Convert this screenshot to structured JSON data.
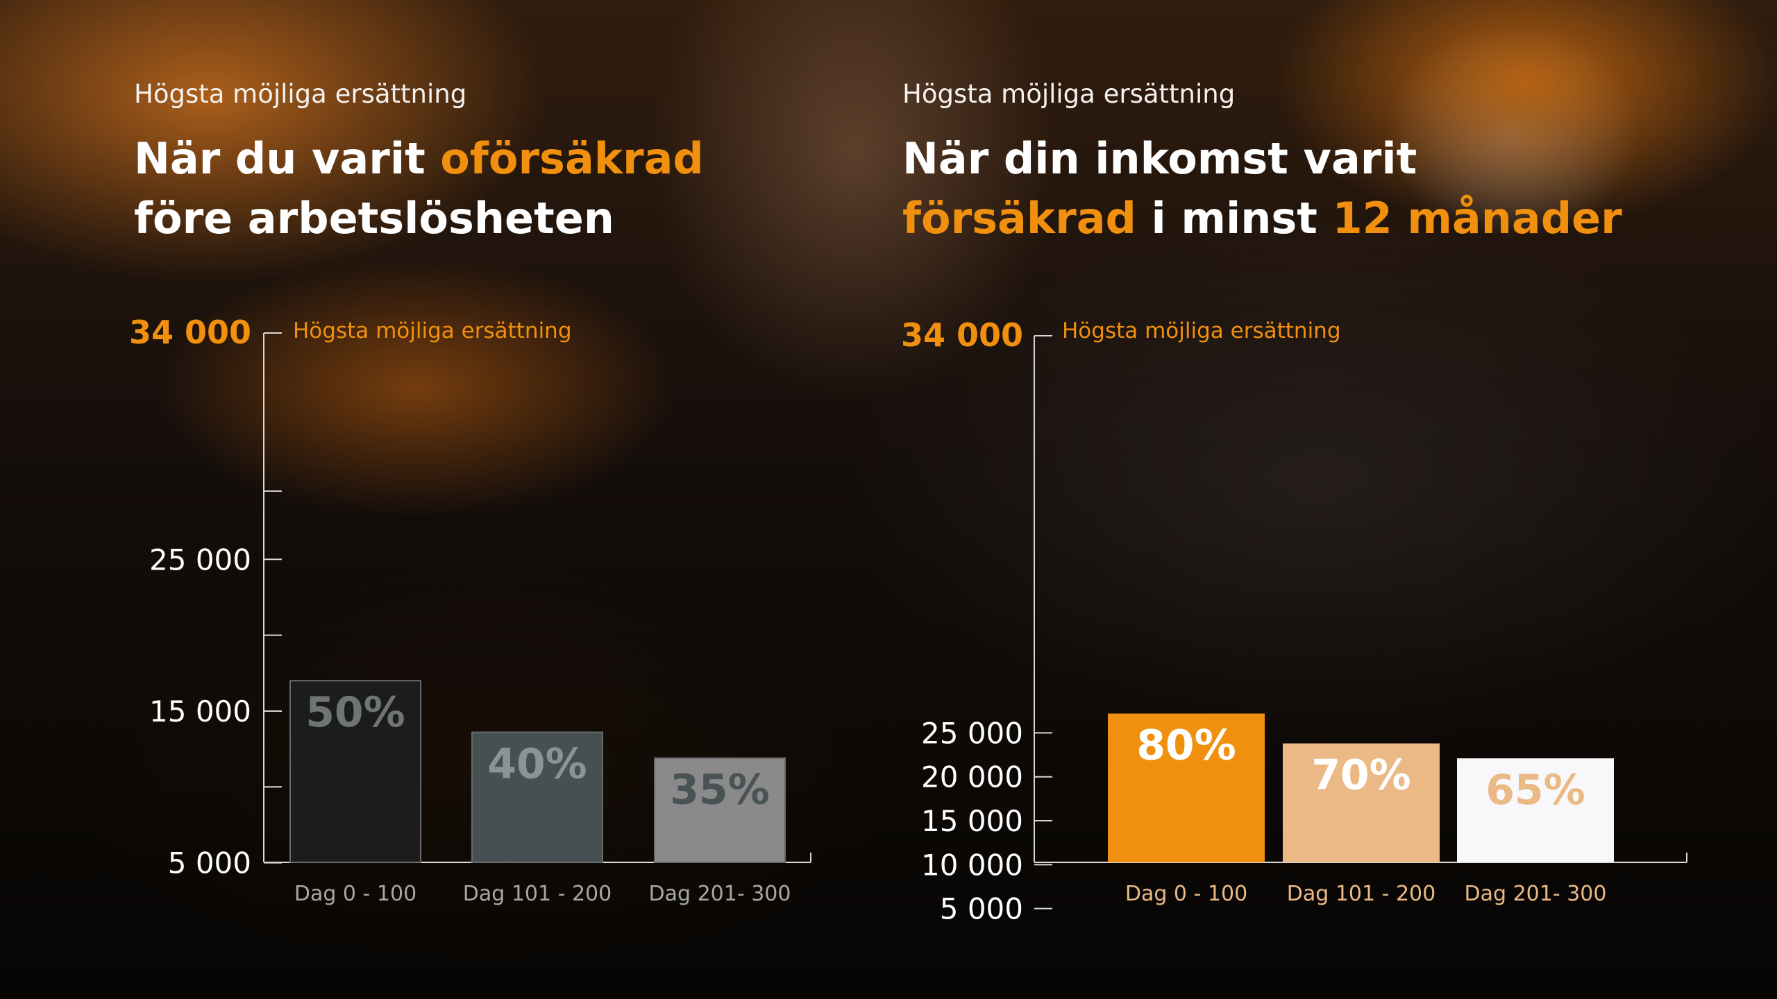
{
  "colors": {
    "accent": "#f0900e",
    "white": "#ffffff"
  },
  "left_panel": {
    "kicker": "Högsta möjliga ersättning",
    "headline": {
      "line1_pre": "När du varit ",
      "line1_accent": "oförsäkrad",
      "line2": "före arbetslösheten"
    }
  },
  "right_panel": {
    "kicker": "Högsta möjliga ersättning",
    "headline": {
      "line1": "När din inkomst varit",
      "line2_accent1": "försäkrad",
      "line2_mid": " i minst ",
      "line2_accent2": "12 månader"
    }
  },
  "chart_data": [
    {
      "type": "bar",
      "ylabel": "Högsta möjliga ersättning",
      "ylim": [
        0,
        34000
      ],
      "ytick_labels": [
        "34 000",
        "25 000",
        "15 000",
        "5 000"
      ],
      "ytick_values": [
        34000,
        25000,
        15000,
        5000
      ],
      "minor_tick_values": [
        29500,
        20000,
        10000
      ],
      "categories": [
        "Dag 0 - 100",
        "Dag 101 - 200",
        "Dag 201- 300"
      ],
      "values": [
        17000,
        13600,
        11900
      ],
      "data_labels": [
        "50%",
        "40%",
        "35%"
      ],
      "bar_colors": [
        "#1c1c1c",
        "#465053",
        "#8a8a8a"
      ],
      "label_colors": [
        "#6f7477",
        "#8a9496",
        "#4a5256"
      ],
      "xtick_color": "#a7a7a7"
    },
    {
      "type": "bar",
      "ylabel": "Högsta möjliga ersättning",
      "ylim": [
        0,
        34000
      ],
      "ytick_labels": [
        "34 000",
        "25 000",
        "20 000",
        "15 000",
        "10 000",
        "5 000"
      ],
      "ytick_values": [
        34000,
        25000,
        20000,
        15000,
        10000,
        5000
      ],
      "minor_tick_values": [],
      "categories": [
        "Dag 0 - 100",
        "Dag 101 - 200",
        "Dag 201- 300"
      ],
      "values": [
        27200,
        23800,
        22100
      ],
      "data_labels": [
        "80%",
        "70%",
        "65%"
      ],
      "bar_colors": [
        "#f0900e",
        "#ebb985",
        "#f8f8fa"
      ],
      "label_colors": [
        "#ffffff",
        "#ffffff",
        "#ebb985"
      ],
      "xtick_color": "#ebb985"
    }
  ]
}
